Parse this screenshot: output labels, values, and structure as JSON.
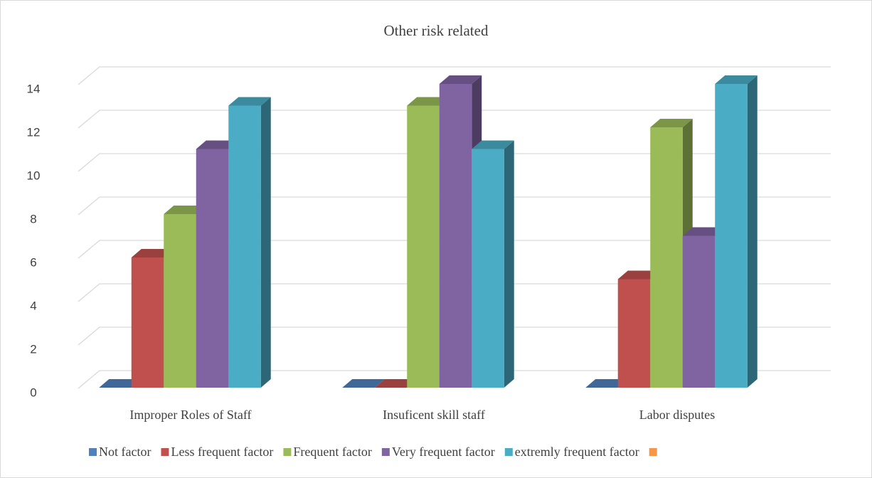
{
  "chart_data": {
    "type": "bar3d",
    "title": "Other risk related",
    "categories": [
      "Improper Roles of Staff",
      "Insuficent skill staff",
      "Labor disputes"
    ],
    "series": [
      {
        "name": "Not factor",
        "color": "#4f81bd",
        "values": [
          0,
          0,
          0
        ]
      },
      {
        "name": "Less frequent factor",
        "color": "#c0504d",
        "values": [
          6,
          0,
          5
        ]
      },
      {
        "name": "Frequent factor",
        "color": "#9bbb59",
        "values": [
          8,
          13,
          12
        ]
      },
      {
        "name": "Very frequent factor",
        "color": "#8064a2",
        "values": [
          11,
          14,
          7
        ]
      },
      {
        "name": "extremly frequent factor",
        "color": "#4bacc6",
        "values": [
          13,
          11,
          14
        ]
      },
      {
        "name": null,
        "color": "#f79646",
        "values": [
          null,
          null,
          null
        ]
      }
    ],
    "ylim": [
      0,
      14
    ],
    "yticks": [
      0,
      2,
      4,
      6,
      8,
      10,
      12,
      14
    ],
    "grid": true,
    "legend": "bottom"
  }
}
